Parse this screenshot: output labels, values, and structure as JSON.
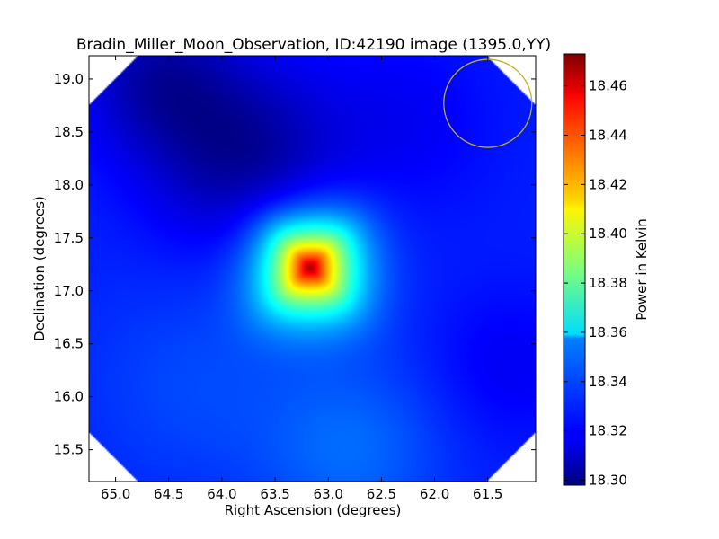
{
  "chart_data": {
    "type": "heatmap",
    "title": "Bradin_Miller_Moon_Observation, ID:42190 image (1395.0,YY)",
    "xlabel": "Right Ascension (degrees)",
    "ylabel": "Declination (degrees)",
    "colorbar_label": "Power in Kelvin",
    "colormap": "jet",
    "x_inverted": true,
    "xlim": [
      65.25,
      61.05
    ],
    "ylim": [
      15.2,
      19.22
    ],
    "x_ticks": [
      65.0,
      64.5,
      64.0,
      63.5,
      63.0,
      62.5,
      62.0,
      61.5
    ],
    "x_tick_labels": [
      "65.0",
      "64.5",
      "64.0",
      "63.5",
      "63.0",
      "62.5",
      "62.0",
      "61.5"
    ],
    "y_ticks": [
      15.5,
      16.0,
      16.5,
      17.0,
      17.5,
      18.0,
      18.5,
      19.0
    ],
    "y_tick_labels": [
      "15.5",
      "16.0",
      "16.5",
      "17.0",
      "17.5",
      "18.0",
      "18.5",
      "19.0"
    ],
    "color_range": [
      18.298,
      18.473
    ],
    "colorbar_ticks": [
      18.3,
      18.32,
      18.34,
      18.36,
      18.38,
      18.4,
      18.42,
      18.44,
      18.46
    ],
    "colorbar_tick_labels": [
      "18.30",
      "18.32",
      "18.34",
      "18.36",
      "18.38",
      "18.40",
      "18.42",
      "18.44",
      "18.46"
    ],
    "baseline_kelvin": 18.325,
    "features": [
      {
        "ra": 63.17,
        "dec": 17.22,
        "peak_kelvin": 18.472,
        "sigma_deg": 0.38
      },
      {
        "ra": 63.8,
        "dec": 18.28,
        "peak_kelvin": 18.302,
        "sigma_deg": 0.6
      },
      {
        "ra": 64.6,
        "dec": 19.0,
        "peak_kelvin": 18.306,
        "sigma_deg": 0.5
      },
      {
        "ra": 64.3,
        "dec": 16.1,
        "peak_kelvin": 18.332,
        "sigma_deg": 0.7
      },
      {
        "ra": 62.3,
        "dec": 18.6,
        "peak_kelvin": 18.318,
        "sigma_deg": 0.6
      },
      {
        "ra": 61.3,
        "dec": 16.3,
        "peak_kelvin": 18.318,
        "sigma_deg": 0.5
      },
      {
        "ra": 62.8,
        "dec": 15.5,
        "peak_kelvin": 18.338,
        "sigma_deg": 0.6
      }
    ],
    "beam_circle": {
      "ra": 61.5,
      "dec": 18.77,
      "radius_deg": 0.36,
      "color": "#bdb22e"
    }
  }
}
